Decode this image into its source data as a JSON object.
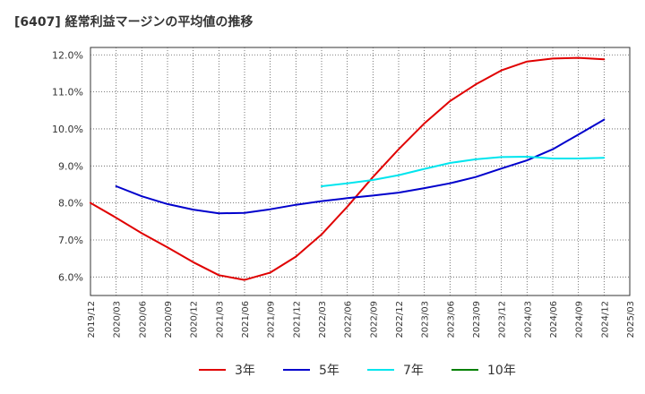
{
  "title": "[6407]  経常利益マージンの平均値の推移",
  "chart_data": {
    "type": "line",
    "title": "[6407]  経常利益マージンの平均値の推移",
    "xlabel": "",
    "ylabel": "",
    "x": [
      "2019/12",
      "2020/03",
      "2020/06",
      "2020/09",
      "2020/12",
      "2021/03",
      "2021/06",
      "2021/09",
      "2021/12",
      "2022/03",
      "2022/06",
      "2022/09",
      "2022/12",
      "2023/03",
      "2023/06",
      "2023/09",
      "2023/12",
      "2024/03",
      "2024/06",
      "2024/09",
      "2024/12",
      "2025/03"
    ],
    "y_ticks": [
      "6.0%",
      "7.0%",
      "8.0%",
      "9.0%",
      "10.0%",
      "11.0%",
      "12.0%"
    ],
    "ylim": [
      5.5,
      12.2
    ],
    "grid": true,
    "legend_position": "bottom",
    "series": [
      {
        "name": "3年",
        "color": "#e00000",
        "values": [
          8.0,
          7.6,
          7.18,
          6.8,
          6.4,
          6.05,
          5.92,
          6.12,
          6.55,
          7.15,
          7.9,
          8.7,
          9.45,
          10.15,
          10.75,
          11.2,
          11.58,
          11.82,
          11.9,
          11.92,
          11.88,
          null
        ]
      },
      {
        "name": "5年",
        "color": "#0000cc",
        "values": [
          null,
          8.45,
          8.18,
          7.97,
          7.82,
          7.72,
          7.73,
          7.83,
          7.95,
          8.05,
          8.13,
          8.2,
          8.28,
          8.4,
          8.53,
          8.7,
          8.93,
          9.15,
          9.45,
          9.85,
          10.25,
          null
        ]
      },
      {
        "name": "7年",
        "color": "#00e5ee",
        "values": [
          null,
          null,
          null,
          null,
          null,
          null,
          null,
          null,
          null,
          8.45,
          8.53,
          8.62,
          8.75,
          8.92,
          9.08,
          9.18,
          9.24,
          9.25,
          9.2,
          9.2,
          9.22,
          null
        ]
      },
      {
        "name": "10年",
        "color": "#008000",
        "values": [
          null,
          null,
          null,
          null,
          null,
          null,
          null,
          null,
          null,
          null,
          null,
          null,
          null,
          null,
          null,
          null,
          null,
          null,
          null,
          null,
          null,
          null
        ]
      }
    ]
  }
}
